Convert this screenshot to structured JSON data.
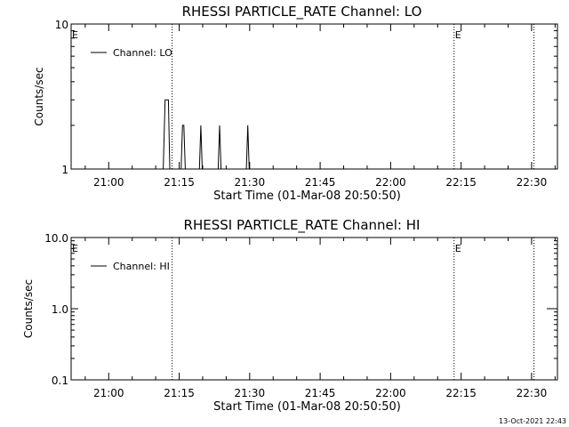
{
  "chart_data": [
    {
      "type": "line",
      "title": "RHESSI PARTICLE_RATE Channel: LO",
      "xlabel": "Start Time (01-Mar-08 20:50:50)",
      "ylabel": "Counts/sec",
      "x_tick_labels": [
        "21:00",
        "21:15",
        "21:30",
        "21:45",
        "22:00",
        "22:15",
        "22:30"
      ],
      "x_ticks_minutes": [
        540,
        555,
        570,
        585,
        600,
        615,
        630
      ],
      "xlim_minutes": [
        532,
        635.5
      ],
      "y_scale": "log",
      "ylim": [
        1,
        10
      ],
      "y_tick_labels": [
        "1",
        "10"
      ],
      "y_ticks": [
        1,
        10
      ],
      "legend": {
        "label": "Channel: LO",
        "placement": "top-left"
      },
      "event_markers": [
        {
          "minute": 553.5,
          "label": ""
        },
        {
          "minute": 613.5,
          "label": "E"
        },
        {
          "minute": 630.5,
          "label": ""
        }
      ],
      "left_marker_label": "E",
      "series": [
        {
          "name": "Channel: LO",
          "x_minutes": [
            532,
            551.6,
            552.0,
            552.3,
            552.7,
            553.0,
            553.6,
            555.4,
            555.7,
            556.0,
            556.3,
            559.3,
            559.6,
            559.9,
            563.3,
            563.6,
            563.9,
            569.3,
            569.6,
            569.9,
            635.5
          ],
          "y": [
            1,
            1,
            3,
            3,
            3,
            1,
            1,
            1,
            2,
            2,
            1,
            1,
            2,
            1,
            1,
            2,
            1,
            1,
            2,
            1,
            1
          ]
        }
      ]
    },
    {
      "type": "line",
      "title": "RHESSI PARTICLE_RATE Channel: HI",
      "xlabel": "Start Time (01-Mar-08 20:50:50)",
      "ylabel": "Counts/sec",
      "x_tick_labels": [
        "21:00",
        "21:15",
        "21:30",
        "21:45",
        "22:00",
        "22:15",
        "22:30"
      ],
      "x_ticks_minutes": [
        540,
        555,
        570,
        585,
        600,
        615,
        630
      ],
      "xlim_minutes": [
        532,
        635.5
      ],
      "y_scale": "log",
      "ylim": [
        0.1,
        10
      ],
      "y_tick_labels": [
        "0.1",
        "1.0",
        "10.0"
      ],
      "y_ticks": [
        0.1,
        1,
        10
      ],
      "legend": {
        "label": "Channel: HI",
        "placement": "top-left"
      },
      "event_markers": [
        {
          "minute": 553.5,
          "label": ""
        },
        {
          "minute": 613.5,
          "label": "E"
        },
        {
          "minute": 630.5,
          "label": ""
        }
      ],
      "left_marker_label": "E",
      "series": [
        {
          "name": "Channel: HI",
          "x_minutes": [],
          "y": []
        }
      ]
    }
  ],
  "footer": {
    "timestamp": "13-Oct-2021 22:43"
  },
  "colors": {
    "line": "#000000",
    "background": "#ffffff"
  }
}
